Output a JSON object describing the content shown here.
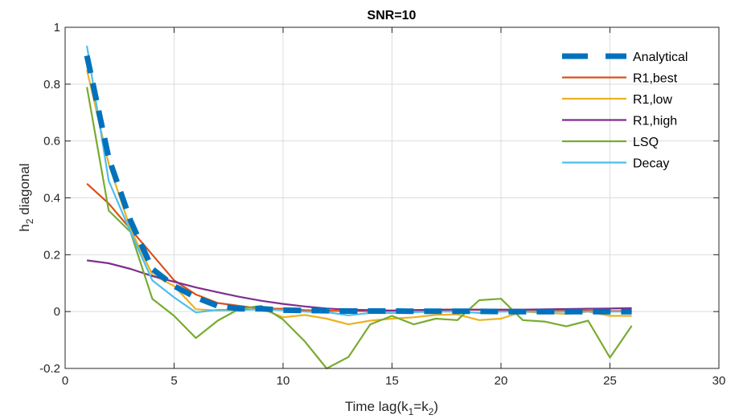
{
  "chart_data": {
    "type": "line",
    "title": "SNR=10",
    "xlabel": {
      "main": "Time lag(k",
      "sub1": "1",
      "eq": "=k",
      "sub2": "2",
      "close": ")"
    },
    "ylabel": {
      "pre": "h",
      "sub": "2",
      "post": " diagonal"
    },
    "xlim": [
      0,
      30
    ],
    "ylim": [
      -0.2,
      1
    ],
    "xticks": [
      0,
      5,
      10,
      15,
      20,
      25,
      30
    ],
    "xtick_labels": [
      "0",
      "5",
      "10",
      "15",
      "20",
      "25",
      "30"
    ],
    "yticks": [
      -0.2,
      0,
      0.2,
      0.4,
      0.6,
      0.8,
      1
    ],
    "ytick_labels": [
      "-0.2",
      "0",
      "0.2",
      "0.4",
      "0.6",
      "0.8",
      "1"
    ],
    "grid": true,
    "legend_position": "top-right",
    "x": [
      1,
      2,
      3,
      4,
      5,
      6,
      7,
      8,
      9,
      10,
      11,
      12,
      13,
      14,
      15,
      16,
      17,
      18,
      19,
      20,
      21,
      22,
      23,
      24,
      25,
      26
    ],
    "series": [
      {
        "name": "Analytical",
        "color": "#0072BD",
        "dash": "dashed",
        "values": [
          0.9,
          0.54,
          0.32,
          0.15,
          0.09,
          0.05,
          0.02,
          0.01,
          0.01,
          0.005,
          0.004,
          0.003,
          0.002,
          0.002,
          0.002,
          0.001,
          0.001,
          0.001,
          0.001,
          0.0,
          0.0,
          0.0,
          0.0,
          0.0,
          0.0,
          0.0
        ]
      },
      {
        "name": "R1,best",
        "color": "#D95319",
        "dash": "solid",
        "values": [
          0.45,
          0.38,
          0.29,
          0.2,
          0.11,
          0.06,
          0.03,
          0.02,
          0.01,
          0.01,
          0.005,
          0.003,
          0.002,
          0.002,
          0.003,
          0.005,
          0.007,
          0.007,
          0.006,
          0.005,
          0.004,
          0.004,
          0.003,
          0.003,
          0.002,
          0.002
        ]
      },
      {
        "name": "R1,low",
        "color": "#EDB120",
        "dash": "solid",
        "values": [
          0.85,
          0.52,
          0.29,
          0.13,
          0.09,
          0.008,
          0.004,
          0.005,
          0.01,
          -0.02,
          -0.012,
          -0.025,
          -0.045,
          -0.032,
          -0.025,
          -0.02,
          -0.012,
          -0.01,
          -0.03,
          -0.025,
          0.0,
          -0.005,
          -0.008,
          0.0,
          -0.015,
          -0.015
        ]
      },
      {
        "name": "R1,high",
        "color": "#7E2F8E",
        "dash": "solid",
        "values": [
          0.18,
          0.17,
          0.15,
          0.125,
          0.105,
          0.085,
          0.068,
          0.052,
          0.038,
          0.027,
          0.018,
          0.011,
          0.007,
          0.005,
          0.004,
          0.005,
          0.006,
          0.007,
          0.007,
          0.007,
          0.007,
          0.008,
          0.009,
          0.01,
          0.011,
          0.012
        ]
      },
      {
        "name": "LSQ",
        "color": "#77AC30",
        "dash": "solid",
        "values": [
          0.79,
          0.355,
          0.28,
          0.045,
          -0.015,
          -0.093,
          -0.032,
          0.01,
          0.02,
          -0.028,
          -0.105,
          -0.2,
          -0.16,
          -0.045,
          -0.015,
          -0.045,
          -0.025,
          -0.03,
          0.04,
          0.045,
          -0.03,
          -0.035,
          -0.052,
          -0.032,
          -0.162,
          -0.05
        ]
      },
      {
        "name": "Decay",
        "color": "#4DBEEE",
        "dash": "solid",
        "values": [
          0.935,
          0.46,
          0.28,
          0.11,
          0.05,
          -0.003,
          0.006,
          0.006,
          0.008,
          0.005,
          0.0,
          -0.002,
          -0.013,
          -0.005,
          -0.005,
          -0.002,
          0.0,
          0.0,
          -0.005,
          0.0,
          0.0,
          0.0,
          0.0,
          0.0,
          0.0,
          0.0
        ]
      }
    ]
  }
}
